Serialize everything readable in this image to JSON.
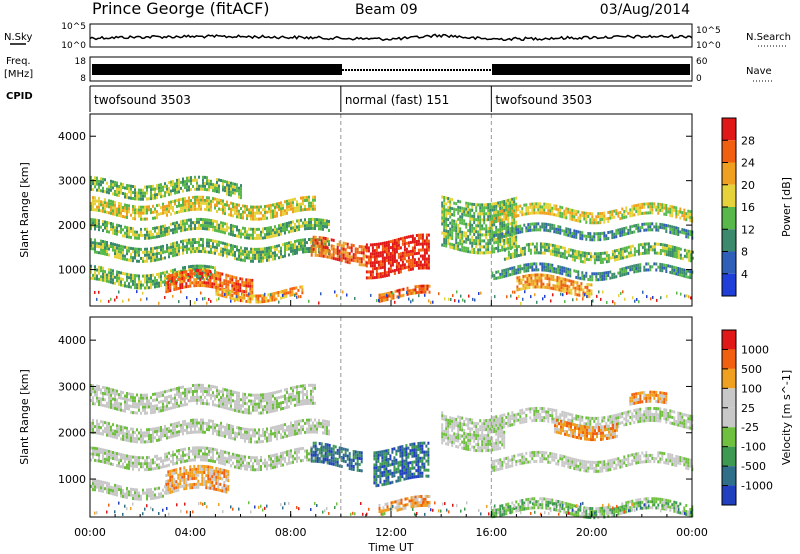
{
  "header": {
    "station": "Prince George (fitACF)",
    "beam": "Beam 09",
    "date": "03/Aug/2014"
  },
  "top_panels": {
    "nsky_label": "N.Sky",
    "nsky_ticks": [
      "10^5",
      "10^0"
    ],
    "nsearch_label": "N.Search",
    "nsearch_ticks": [
      "10^5",
      "10^0"
    ],
    "freq_label": "Freq.",
    "freq_unit": "[MHz]",
    "freq_ticks": [
      "18",
      "8"
    ],
    "nave_label": "Nave",
    "nave_ticks": [
      "60",
      "0"
    ],
    "cpid_label": "CPID",
    "cpid_segments": [
      {
        "label": "twofsound 3503",
        "start_hour": 0,
        "end_hour": 10
      },
      {
        "label": "normal (fast) 151",
        "start_hour": 10,
        "end_hour": 16
      },
      {
        "label": "twofsound 3503",
        "start_hour": 16,
        "end_hour": 24
      }
    ]
  },
  "chart_data": [
    {
      "type": "heatmap",
      "title": "",
      "ylabel": "Slant Range [km]",
      "ylim": [
        180,
        4500
      ],
      "yticks": [
        "1000",
        "2000",
        "3000",
        "4000"
      ],
      "colorbar_label": "Power [dB]",
      "colorbar_ticks": [
        "4",
        "8",
        "12",
        "16",
        "20",
        "24",
        "28"
      ],
      "colorbar_colors": [
        "#1f3fd8",
        "#2f5fb8",
        "#3c8a6e",
        "#58b84a",
        "#e6d23a",
        "#f0a020",
        "#f06010",
        "#e01818"
      ],
      "echo_bands": [
        {
          "start_hour": 0.0,
          "end_hour": 6.0,
          "range_km": [
            2700,
            3000
          ],
          "level": 3
        },
        {
          "start_hour": 0.0,
          "end_hour": 9.0,
          "range_km": [
            2250,
            2550
          ],
          "level": 4
        },
        {
          "start_hour": 0.0,
          "end_hour": 9.5,
          "range_km": [
            1800,
            2050
          ],
          "level": 3
        },
        {
          "start_hour": 0.0,
          "end_hour": 9.5,
          "range_km": [
            1300,
            1600
          ],
          "level": 3
        },
        {
          "start_hour": 0.0,
          "end_hour": 5.0,
          "range_km": [
            700,
            1000
          ],
          "level": 3
        },
        {
          "start_hour": 3.0,
          "end_hour": 6.5,
          "range_km": [
            500,
            900
          ],
          "level": 6
        },
        {
          "start_hour": 5.0,
          "end_hour": 8.5,
          "range_km": [
            350,
            550
          ],
          "level": 5
        },
        {
          "start_hour": 8.8,
          "end_hour": 11.0,
          "range_km": [
            1200,
            1650
          ],
          "level": 6
        },
        {
          "start_hour": 11.0,
          "end_hour": 13.5,
          "range_km": [
            900,
            1700
          ],
          "level": 7
        },
        {
          "start_hour": 11.5,
          "end_hour": 13.5,
          "range_km": [
            350,
            550
          ],
          "level": 6
        },
        {
          "start_hour": 14.0,
          "end_hour": 17.0,
          "range_km": [
            1500,
            2600
          ],
          "level": 3
        },
        {
          "start_hour": 17.0,
          "end_hour": 20.0,
          "range_km": [
            500,
            800
          ],
          "level": 5
        },
        {
          "start_hour": 16.0,
          "end_hour": 24.0,
          "range_km": [
            2150,
            2400
          ],
          "level": 4
        },
        {
          "start_hour": 16.0,
          "end_hour": 24.0,
          "range_km": [
            1750,
            1950
          ],
          "level": 2
        },
        {
          "start_hour": 16.5,
          "end_hour": 24.0,
          "range_km": [
            1250,
            1500
          ],
          "level": 3
        },
        {
          "start_hour": 16.0,
          "end_hour": 24.0,
          "range_km": [
            850,
            1050
          ],
          "level": 2
        }
      ]
    },
    {
      "type": "heatmap",
      "title": "",
      "ylabel": "Slant Range [km]",
      "ylim": [
        180,
        4500
      ],
      "yticks": [
        "1000",
        "2000",
        "3000",
        "4000"
      ],
      "xlabel": "Time UT",
      "xlim": [
        0,
        24
      ],
      "xticks": [
        "00:00",
        "04:00",
        "08:00",
        "12:00",
        "16:00",
        "20:00",
        "00:00"
      ],
      "colorbar_label": "Velocity [m s^-1]",
      "colorbar_ticks": [
        "1000",
        "500",
        "100",
        "25",
        "-25",
        "-100",
        "-500",
        "-1000"
      ],
      "colorbar_colors": [
        "#2040c0",
        "#2f6f8a",
        "#3e9a50",
        "#70c040",
        "#c8c8c8",
        "#c8c8c8",
        "#f0a020",
        "#f06010",
        "#e01818"
      ],
      "echo_bands": [
        {
          "start_hour": 0.0,
          "end_hour": 9.0,
          "range_km": [
            2500,
            2950
          ],
          "level": 4
        },
        {
          "start_hour": 0.0,
          "end_hour": 9.5,
          "range_km": [
            1900,
            2200
          ],
          "level": 4
        },
        {
          "start_hour": 0.0,
          "end_hour": 9.5,
          "range_km": [
            1300,
            1600
          ],
          "level": 4
        },
        {
          "start_hour": 3.0,
          "end_hour": 5.5,
          "range_km": [
            700,
            1200
          ],
          "level": 6
        },
        {
          "start_hour": 0.0,
          "end_hour": 3.0,
          "range_km": [
            650,
            900
          ],
          "level": 4
        },
        {
          "start_hour": 8.8,
          "end_hour": 10.8,
          "range_km": [
            1250,
            1700
          ],
          "level": 1
        },
        {
          "start_hour": 11.3,
          "end_hour": 13.5,
          "range_km": [
            950,
            1700
          ],
          "level": 1
        },
        {
          "start_hour": 11.5,
          "end_hour": 13.5,
          "range_km": [
            350,
            550
          ],
          "level": 6
        },
        {
          "start_hour": 14.0,
          "end_hour": 16.5,
          "range_km": [
            1700,
            2400
          ],
          "level": 4
        },
        {
          "start_hour": 16.0,
          "end_hour": 24.0,
          "range_km": [
            2150,
            2450
          ],
          "level": 4
        },
        {
          "start_hour": 18.5,
          "end_hour": 21.0,
          "range_km": [
            1950,
            2250
          ],
          "level": 6
        },
        {
          "start_hour": 21.5,
          "end_hour": 23.0,
          "range_km": [
            2550,
            2800
          ],
          "level": 6
        },
        {
          "start_hour": 16.0,
          "end_hour": 24.0,
          "range_km": [
            1250,
            1500
          ],
          "level": 4
        },
        {
          "start_hour": 16.0,
          "end_hour": 24.0,
          "range_km": [
            300,
            500
          ],
          "level": 3
        }
      ]
    }
  ]
}
